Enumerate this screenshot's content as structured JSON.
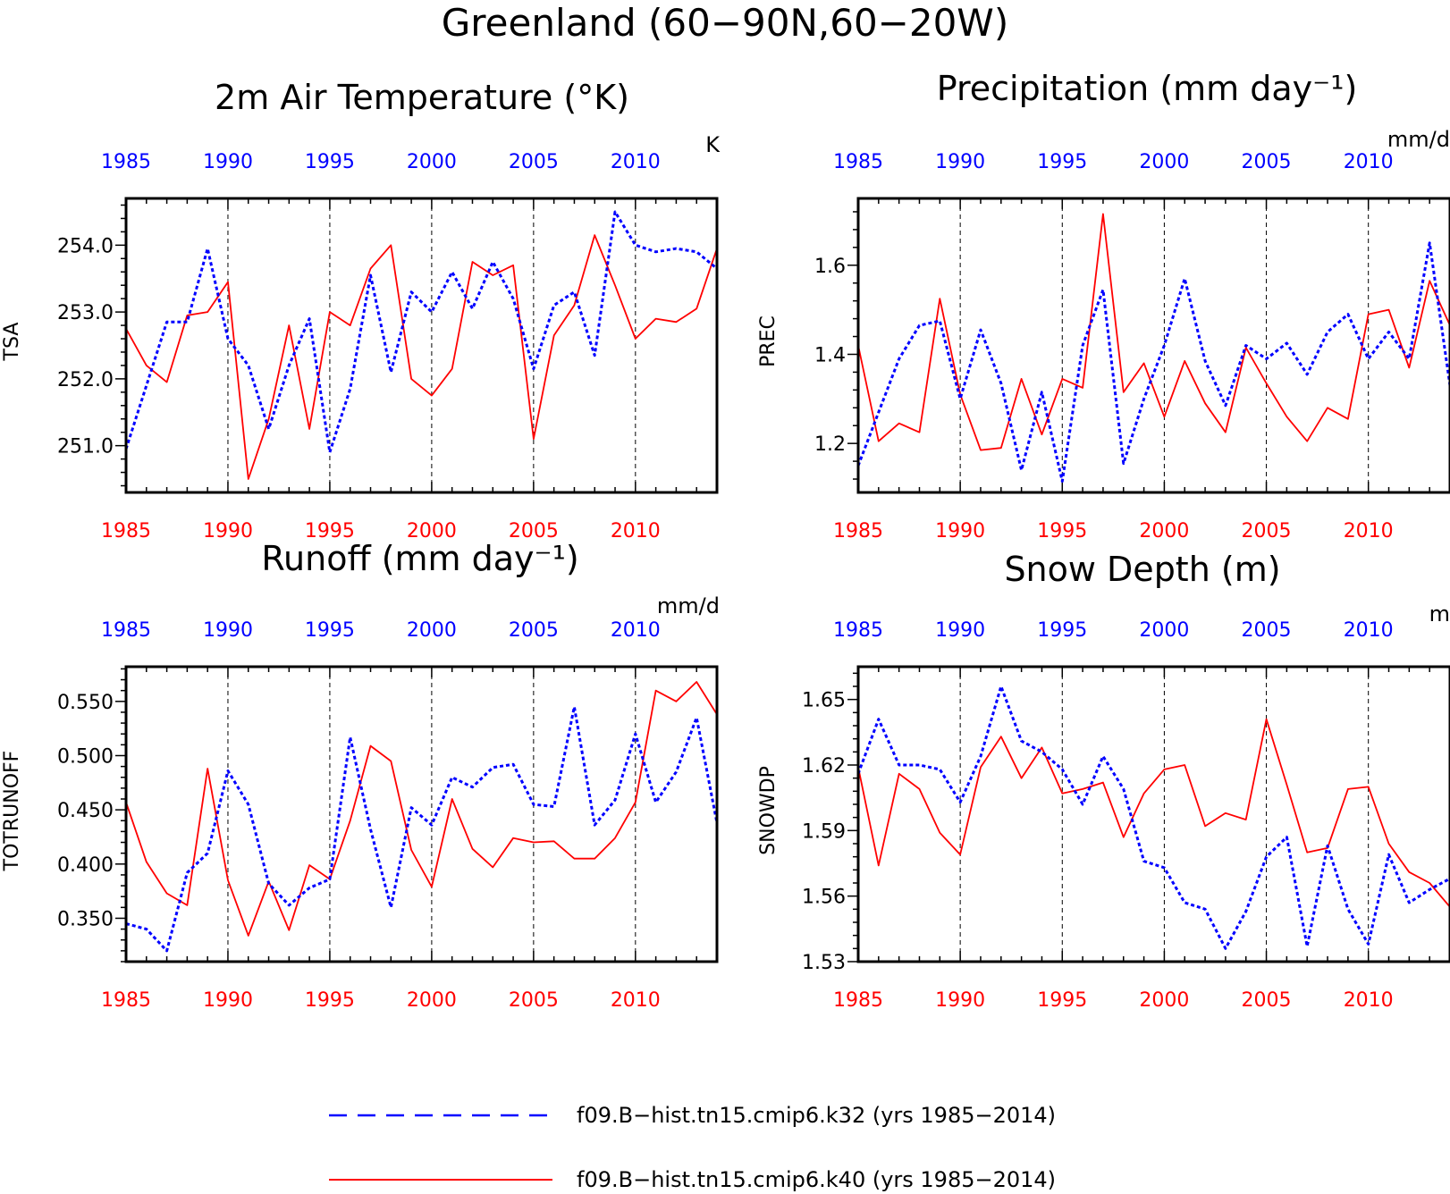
{
  "figure_title": "Greenland (60−90N,60−20W)",
  "colors": {
    "series_k32": "#0000ff",
    "series_k40": "#ff0000",
    "axes": "#000000"
  },
  "legend": [
    {
      "label": "f09.B−hist.tn15.cmip6.k32 (yrs 1985−2014)",
      "color": "#0000ff",
      "style": "dashed"
    },
    {
      "label": "f09.B−hist.tn15.cmip6.k40 (yrs 1985−2014)",
      "color": "#ff0000",
      "style": "solid"
    }
  ],
  "chart_data": [
    {
      "type": "line",
      "title": "2m Air Temperature (°K)",
      "units": "K",
      "ylabel": "TSA",
      "ylim": [
        250.3,
        254.7
      ],
      "yticks": [
        251.0,
        252.0,
        253.0,
        254.0
      ],
      "ytick_labels": [
        "251.0",
        "252.0",
        "253.0",
        "254.0"
      ],
      "xlim": [
        1985,
        2014
      ],
      "xticks": [
        1985,
        1990,
        1995,
        2000,
        2005,
        2010
      ],
      "x": [
        1985,
        1986,
        1987,
        1988,
        1989,
        1990,
        1991,
        1992,
        1993,
        1994,
        1995,
        1996,
        1997,
        1998,
        1999,
        2000,
        2001,
        2002,
        2003,
        2004,
        2005,
        2006,
        2007,
        2008,
        2009,
        2010,
        2011,
        2012,
        2013,
        2014
      ],
      "series": [
        {
          "name": "f09.B−hist.tn15.cmip6.k32 (yrs 1985−2014)",
          "values": [
            250.95,
            251.9,
            252.85,
            252.85,
            253.95,
            252.6,
            252.2,
            251.25,
            252.2,
            252.9,
            250.9,
            251.85,
            253.55,
            252.1,
            253.3,
            253.0,
            253.6,
            253.05,
            253.75,
            253.2,
            252.15,
            253.1,
            253.3,
            252.35,
            254.5,
            254.0,
            253.9,
            253.95,
            253.9,
            253.65
          ]
        },
        {
          "name": "f09.B−hist.tn15.cmip6.k40 (yrs 1985−2014)",
          "values": [
            252.75,
            252.2,
            251.95,
            252.95,
            253.0,
            253.45,
            250.5,
            251.4,
            252.8,
            251.25,
            253.0,
            252.8,
            253.65,
            254.0,
            252.0,
            251.75,
            252.15,
            253.75,
            253.55,
            253.7,
            251.1,
            252.65,
            253.1,
            254.15,
            253.4,
            252.6,
            252.9,
            252.85,
            253.05,
            253.95
          ]
        }
      ]
    },
    {
      "type": "line",
      "title": "Precipitation (mm day⁻¹)",
      "units": "mm/d",
      "ylabel": "PREC",
      "ylim": [
        1.09,
        1.75
      ],
      "yticks": [
        1.2,
        1.4,
        1.6
      ],
      "ytick_labels": [
        "1.2",
        "1.4",
        "1.6"
      ],
      "xlim": [
        1985,
        2014
      ],
      "xticks": [
        1985,
        1990,
        1995,
        2000,
        2005,
        2010
      ],
      "x": [
        1985,
        1986,
        1987,
        1988,
        1989,
        1990,
        1991,
        1992,
        1993,
        1994,
        1995,
        1996,
        1997,
        1998,
        1999,
        2000,
        2001,
        2002,
        2003,
        2004,
        2005,
        2006,
        2007,
        2008,
        2009,
        2010,
        2011,
        2012,
        2013,
        2014
      ],
      "series": [
        {
          "name": "f09.B−hist.tn15.cmip6.k32 (yrs 1985−2014)",
          "values": [
            1.15,
            1.27,
            1.39,
            1.465,
            1.475,
            1.3,
            1.455,
            1.335,
            1.14,
            1.315,
            1.115,
            1.42,
            1.545,
            1.155,
            1.3,
            1.42,
            1.57,
            1.385,
            1.285,
            1.42,
            1.39,
            1.425,
            1.355,
            1.45,
            1.49,
            1.39,
            1.45,
            1.39,
            1.65,
            1.33
          ]
        },
        {
          "name": "f09.B−hist.tn15.cmip6.k40 (yrs 1985−2014)",
          "values": [
            1.42,
            1.205,
            1.245,
            1.225,
            1.525,
            1.31,
            1.185,
            1.19,
            1.345,
            1.22,
            1.345,
            1.325,
            1.715,
            1.315,
            1.38,
            1.26,
            1.385,
            1.29,
            1.225,
            1.415,
            1.335,
            1.26,
            1.205,
            1.28,
            1.255,
            1.49,
            1.5,
            1.37,
            1.565,
            1.465
          ]
        }
      ]
    },
    {
      "type": "line",
      "title": "Runoff (mm day⁻¹)",
      "units": "mm/d",
      "ylabel": "TOTRUNOFF",
      "ylim": [
        0.31,
        0.582
      ],
      "yticks": [
        0.35,
        0.4,
        0.45,
        0.5,
        0.55
      ],
      "ytick_labels": [
        "0.350",
        "0.400",
        "0.450",
        "0.500",
        "0.550"
      ],
      "xlim": [
        1985,
        2014
      ],
      "xticks": [
        1985,
        1990,
        1995,
        2000,
        2005,
        2010
      ],
      "x": [
        1985,
        1986,
        1987,
        1988,
        1989,
        1990,
        1991,
        1992,
        1993,
        1994,
        1995,
        1996,
        1997,
        1998,
        1999,
        2000,
        2001,
        2002,
        2003,
        2004,
        2005,
        2006,
        2007,
        2008,
        2009,
        2010,
        2011,
        2012,
        2013,
        2014
      ],
      "series": [
        {
          "name": "f09.B−hist.tn15.cmip6.k32 (yrs 1985−2014)",
          "values": [
            0.345,
            0.34,
            0.32,
            0.392,
            0.41,
            0.486,
            0.455,
            0.382,
            0.362,
            0.378,
            0.386,
            0.517,
            0.432,
            0.36,
            0.452,
            0.436,
            0.48,
            0.471,
            0.489,
            0.492,
            0.455,
            0.453,
            0.545,
            0.436,
            0.459,
            0.52,
            0.457,
            0.485,
            0.535,
            0.438
          ]
        },
        {
          "name": "f09.B−hist.tn15.cmip6.k40 (yrs 1985−2014)",
          "values": [
            0.457,
            0.402,
            0.373,
            0.362,
            0.488,
            0.385,
            0.334,
            0.384,
            0.339,
            0.399,
            0.386,
            0.44,
            0.509,
            0.495,
            0.413,
            0.379,
            0.46,
            0.414,
            0.397,
            0.424,
            0.42,
            0.421,
            0.405,
            0.405,
            0.424,
            0.457,
            0.56,
            0.55,
            0.568,
            0.538
          ]
        }
      ]
    },
    {
      "type": "line",
      "title": "Snow Depth (m)",
      "units": "m",
      "ylabel": "SNOWDP",
      "ylim": [
        1.53,
        1.665
      ],
      "yticks": [
        1.53,
        1.56,
        1.59,
        1.62,
        1.65
      ],
      "ytick_labels": [
        "1.53",
        "1.56",
        "1.59",
        "1.62",
        "1.65"
      ],
      "xlim": [
        1985,
        2014
      ],
      "xticks": [
        1985,
        1990,
        1995,
        2000,
        2005,
        2010
      ],
      "x": [
        1985,
        1986,
        1987,
        1988,
        1989,
        1990,
        1991,
        1992,
        1993,
        1994,
        1995,
        1996,
        1997,
        1998,
        1999,
        2000,
        2001,
        2002,
        2003,
        2004,
        2005,
        2006,
        2007,
        2008,
        2009,
        2010,
        2011,
        2012,
        2013,
        2014
      ],
      "series": [
        {
          "name": "f09.B−hist.tn15.cmip6.k32 (yrs 1985−2014)",
          "values": [
            1.616,
            1.641,
            1.62,
            1.62,
            1.618,
            1.603,
            1.624,
            1.656,
            1.631,
            1.626,
            1.618,
            1.602,
            1.624,
            1.609,
            1.576,
            1.573,
            1.557,
            1.554,
            1.536,
            1.553,
            1.578,
            1.587,
            1.537,
            1.583,
            1.554,
            1.538,
            1.579,
            1.557,
            1.563,
            1.568
          ]
        },
        {
          "name": "f09.B−hist.tn15.cmip6.k40 (yrs 1985−2014)",
          "values": [
            1.619,
            1.574,
            1.616,
            1.609,
            1.589,
            1.579,
            1.619,
            1.633,
            1.614,
            1.628,
            1.607,
            1.609,
            1.612,
            1.587,
            1.607,
            1.618,
            1.62,
            1.592,
            1.598,
            1.595,
            1.641,
            1.611,
            1.58,
            1.582,
            1.609,
            1.61,
            1.584,
            1.571,
            1.566,
            1.555
          ]
        }
      ]
    }
  ]
}
